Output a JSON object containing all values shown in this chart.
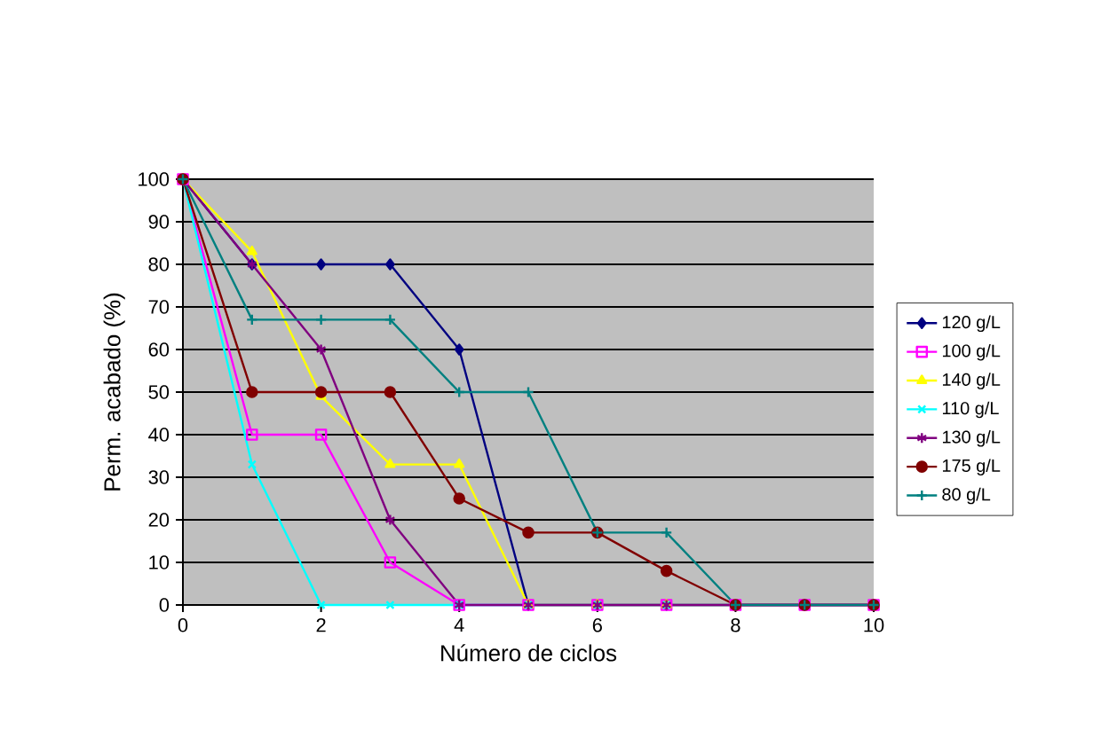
{
  "chart_data": {
    "type": "line",
    "xlabel": "Número de ciclos",
    "ylabel": "Perm. acabado (%)",
    "x": [
      0,
      1,
      2,
      3,
      4,
      5,
      6,
      7,
      8,
      9,
      10
    ],
    "xlim": [
      0,
      10
    ],
    "xticks": [
      0,
      2,
      4,
      6,
      8,
      10
    ],
    "ylim": [
      0,
      100
    ],
    "yticks": [
      0,
      10,
      20,
      30,
      40,
      50,
      60,
      70,
      80,
      90,
      100
    ],
    "grid": "y",
    "legend": "right",
    "line_style": "solid",
    "series": [
      {
        "name": "120 g/L",
        "color": "#000080",
        "marker": "diamond",
        "values": [
          100,
          80,
          80,
          80,
          60,
          0,
          0,
          0,
          0,
          0,
          0
        ]
      },
      {
        "name": "100 g/L",
        "color": "#ff00ff",
        "marker": "square",
        "values": [
          100,
          40,
          40,
          10,
          0,
          0,
          0,
          0,
          0,
          0,
          0
        ]
      },
      {
        "name": "140 g/L",
        "color": "#ffff00",
        "marker": "triangle",
        "values": [
          100,
          83,
          49,
          33,
          33,
          0,
          0,
          0,
          0,
          null,
          null
        ]
      },
      {
        "name": "110 g/L",
        "color": "#00ffff",
        "marker": "cross",
        "values": [
          100,
          33,
          0,
          0,
          0,
          0,
          0,
          0,
          0,
          null,
          null
        ]
      },
      {
        "name": "130 g/L",
        "color": "#800080",
        "marker": "cross",
        "values": [
          100,
          80,
          60,
          20,
          0,
          0,
          0,
          0,
          0,
          0,
          0
        ]
      },
      {
        "name": "175 g/L",
        "color": "#800000",
        "marker": "circle",
        "values": [
          100,
          50,
          50,
          50,
          25,
          17,
          17,
          8,
          0,
          0,
          0
        ]
      },
      {
        "name": "80 g/L",
        "color": "#008080",
        "marker": "plus",
        "values": [
          100,
          67,
          67,
          67,
          50,
          50,
          17,
          17,
          0,
          0,
          0
        ]
      }
    ]
  }
}
